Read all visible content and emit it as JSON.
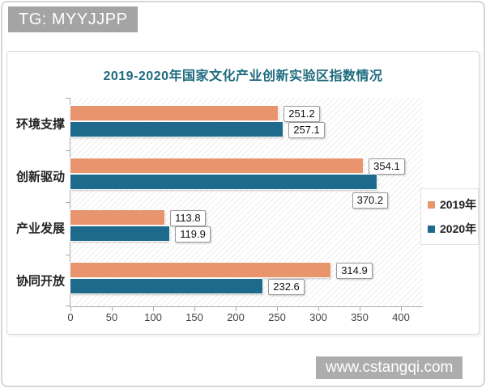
{
  "overlays": {
    "tg_badge": "TG: MYYJJPP",
    "watermark": "www.cstangqi.com"
  },
  "chart_data": {
    "type": "bar",
    "orientation": "horizontal",
    "title": "2019-2020年国家文化产业创新实验区指数情况",
    "title_color": "#1e6b7e",
    "categories": [
      "环境支撑",
      "创新驱动",
      "产业发展",
      "协同开放"
    ],
    "series": [
      {
        "name": "2019年",
        "color": "#e8946d",
        "values": [
          251.2,
          354.1,
          113.8,
          314.9
        ]
      },
      {
        "name": "2020年",
        "color": "#1e6a8c",
        "values": [
          257.1,
          370.2,
          119.9,
          232.6
        ]
      }
    ],
    "xlim": [
      0,
      400
    ],
    "x_ticks": [
      0,
      50,
      100,
      150,
      200,
      250,
      300,
      350,
      400
    ],
    "legend_position": "right",
    "grid": false,
    "plot_background_hatch": true,
    "data_labels": true
  }
}
